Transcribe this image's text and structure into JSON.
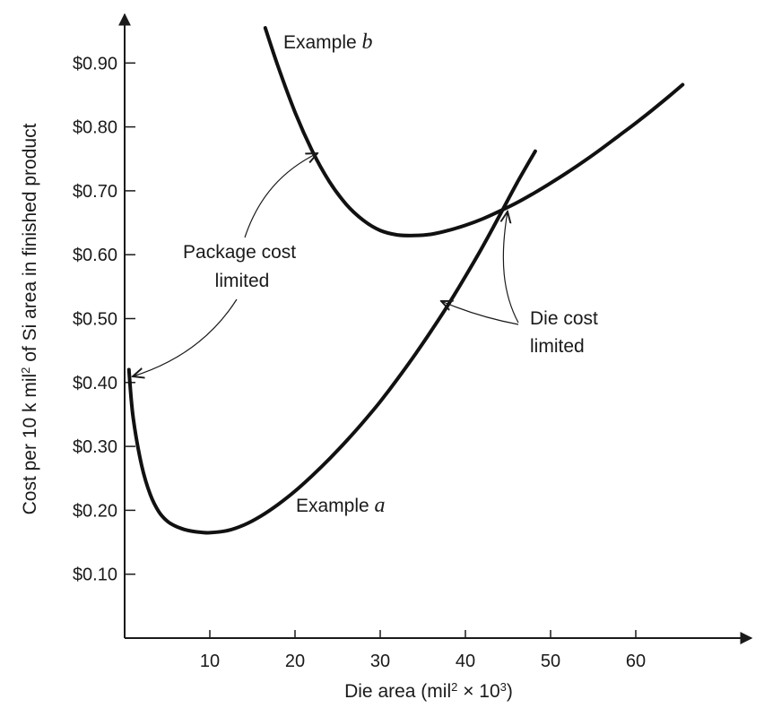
{
  "chart_data": {
    "type": "line",
    "xlabel": {
      "prefix": "Die area (mil",
      "sup1": "2",
      "middle": " × 10",
      "sup2": "3",
      "suffix": ")"
    },
    "ylabel": {
      "prefix": "Cost per 10 k mil",
      "sup": "2",
      "suffix": " of Si area in finished product"
    },
    "x_ticks": [
      10,
      20,
      30,
      40,
      50,
      60
    ],
    "y_ticks": [
      "$0.10",
      "$0.20",
      "$0.30",
      "$0.40",
      "$0.50",
      "$0.60",
      "$0.70",
      "$0.80",
      "$0.90"
    ],
    "y_tick_values": [
      0.1,
      0.2,
      0.3,
      0.4,
      0.5,
      0.6,
      0.7,
      0.8,
      0.9
    ],
    "series": [
      {
        "name": "Example a",
        "label_prefix": "Example ",
        "label_letter": "a",
        "x": [
          0.5,
          1,
          2,
          3,
          4,
          5,
          6,
          7,
          8,
          9,
          10,
          12,
          14,
          16,
          18,
          20,
          22,
          24,
          26,
          28,
          30,
          32,
          34,
          36,
          38,
          40,
          42,
          44,
          46,
          48.2
        ],
        "y": [
          0.42,
          0.345,
          0.27,
          0.225,
          0.198,
          0.183,
          0.175,
          0.17,
          0.167,
          0.1655,
          0.165,
          0.168,
          0.177,
          0.191,
          0.209,
          0.23,
          0.254,
          0.28,
          0.308,
          0.338,
          0.37,
          0.405,
          0.442,
          0.481,
          0.522,
          0.566,
          0.612,
          0.661,
          0.711,
          0.762
        ]
      },
      {
        "name": "Example b",
        "label_prefix": "Example ",
        "label_letter": "b",
        "x": [
          16.5,
          18,
          20,
          22,
          24,
          26,
          28,
          30,
          32,
          34,
          36,
          38,
          40,
          42,
          44,
          46,
          48,
          50,
          52,
          54,
          56,
          58,
          60,
          62,
          64,
          65.5
        ],
        "y": [
          0.955,
          0.895,
          0.823,
          0.763,
          0.715,
          0.679,
          0.654,
          0.638,
          0.631,
          0.63,
          0.632,
          0.638,
          0.646,
          0.656,
          0.668,
          0.681,
          0.696,
          0.712,
          0.729,
          0.747,
          0.766,
          0.786,
          0.806,
          0.827,
          0.849,
          0.866
        ]
      }
    ],
    "xlim": [
      0,
      74
    ],
    "ylim": [
      0,
      1.0
    ],
    "grid": false,
    "annotations": [
      {
        "name": "package-cost-limited",
        "lines": [
          "Package cost",
          "limited"
        ]
      },
      {
        "name": "die-cost-limited",
        "lines": [
          "Die cost",
          "limited"
        ]
      }
    ]
  }
}
